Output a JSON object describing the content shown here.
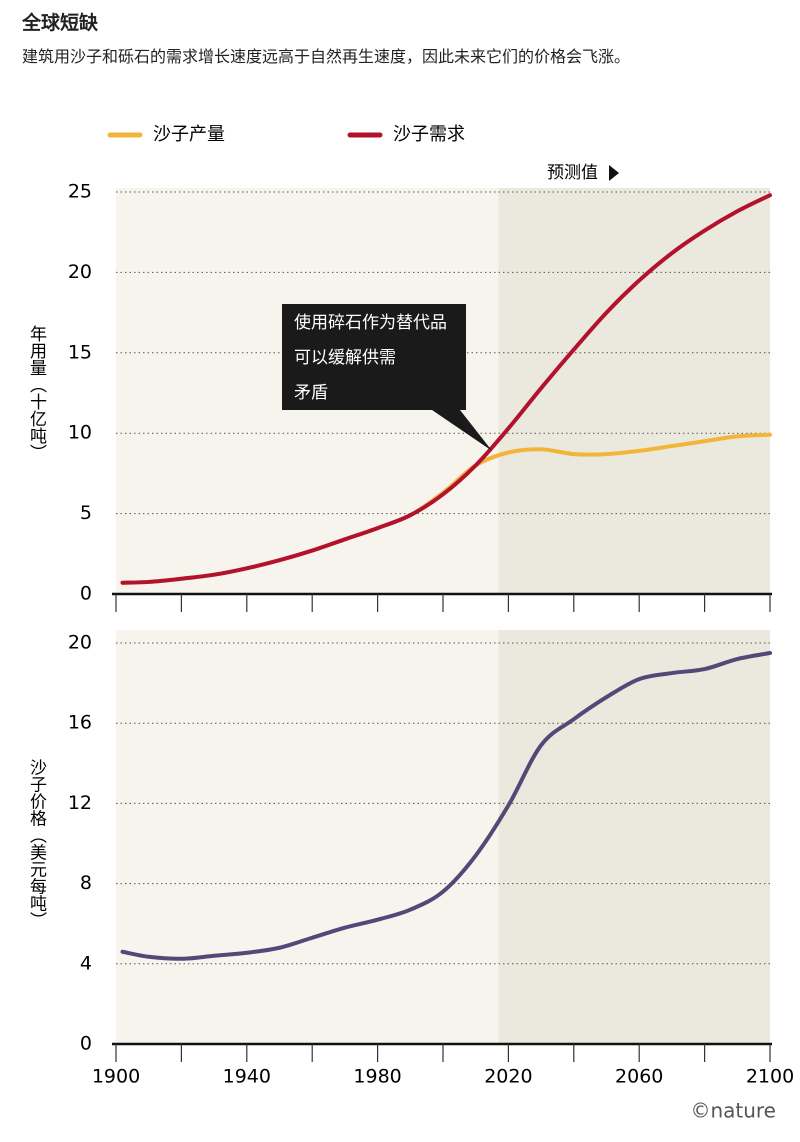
{
  "header": {
    "title": "全球短缺",
    "subtitle": "建筑用沙子和砾石的需求增长速度远高于自然再生速度，因此未来它们的价格会飞涨。"
  },
  "credit": "©nature",
  "chart_data": [
    {
      "type": "line",
      "ylabel": "年用量（十亿吨）",
      "forecast_label": "预测值",
      "forecast_from": 2017,
      "annotation": {
        "lines": [
          "使用碎石作为替代品",
          "可以缓解供需",
          "矛盾"
        ],
        "x": 2015,
        "y": 8.9
      },
      "x": [
        1902,
        1910,
        1920,
        1930,
        1940,
        1950,
        1960,
        1970,
        1980,
        1990,
        2000,
        2010,
        2020,
        2030,
        2040,
        2050,
        2060,
        2070,
        2080,
        2090,
        2100
      ],
      "series": [
        {
          "name": "沙子产量",
          "color": "#f2b53a",
          "values": [
            0.7,
            0.75,
            0.95,
            1.2,
            1.6,
            2.1,
            2.7,
            3.4,
            4.1,
            4.9,
            6.3,
            8.0,
            8.8,
            9.0,
            8.7,
            8.7,
            8.9,
            9.2,
            9.5,
            9.8,
            9.9
          ]
        },
        {
          "name": "沙子需求",
          "color": "#b3122e",
          "values": [
            0.7,
            0.75,
            0.95,
            1.2,
            1.6,
            2.1,
            2.7,
            3.4,
            4.1,
            4.9,
            6.2,
            8.0,
            10.3,
            12.8,
            15.2,
            17.5,
            19.5,
            21.2,
            22.6,
            23.8,
            24.8
          ]
        }
      ],
      "xlim": [
        1900,
        2100
      ],
      "xtick_marks": [
        1900,
        1920,
        1940,
        1960,
        1980,
        2000,
        2020,
        2040,
        2060,
        2080,
        2100
      ],
      "ylim": [
        0,
        25
      ],
      "yticks": [
        0,
        5,
        10,
        15,
        20,
        25
      ],
      "grid": true,
      "legend": "top"
    },
    {
      "type": "line",
      "ylabel": "沙子价格（美元每吨）",
      "forecast_from": 2017,
      "x": [
        1902,
        1910,
        1920,
        1930,
        1940,
        1950,
        1960,
        1970,
        1980,
        1990,
        2000,
        2010,
        2020,
        2030,
        2040,
        2050,
        2060,
        2070,
        2080,
        2090,
        2100
      ],
      "series": [
        {
          "color": "#514a78",
          "values": [
            4.6,
            4.35,
            4.25,
            4.4,
            4.55,
            4.8,
            5.3,
            5.8,
            6.2,
            6.7,
            7.6,
            9.4,
            11.9,
            14.9,
            16.2,
            17.3,
            18.2,
            18.5,
            18.7,
            19.2,
            19.5
          ]
        }
      ],
      "xlim": [
        1900,
        2100
      ],
      "xtick_marks": [
        1900,
        1920,
        1940,
        1960,
        1980,
        2000,
        2020,
        2040,
        2060,
        2080,
        2100
      ],
      "xticks": [
        1900,
        1940,
        1980,
        2020,
        2060,
        2100
      ],
      "ylim": [
        0,
        20
      ],
      "yticks": [
        0,
        4,
        8,
        12,
        16,
        20
      ],
      "grid": true
    }
  ]
}
